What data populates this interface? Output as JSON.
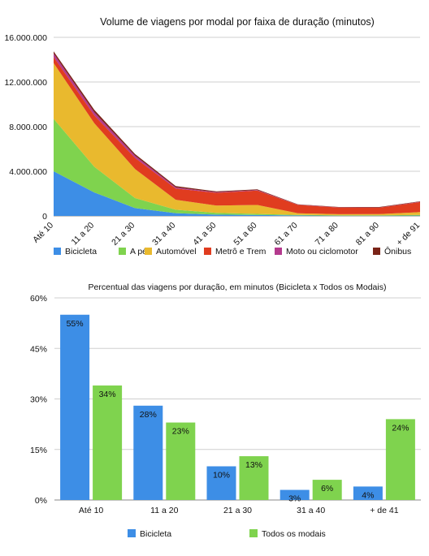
{
  "chart_data": [
    {
      "type": "area",
      "stacked": true,
      "title": "Volume de viagens por modal por faixa de duração (minutos)",
      "xlabel": "",
      "ylabel": "",
      "categories": [
        "Até 10",
        "11 a 20",
        "21 a 30",
        "31 a 40",
        "41 a 50",
        "51 a 60",
        "61 a 70",
        "71 a 80",
        "81 a 90",
        "+ de 91"
      ],
      "ylim": [
        0,
        16000000
      ],
      "yticks": [
        "0",
        "4.000.000",
        "8.000.000",
        "12.000.000",
        "16.000.000"
      ],
      "grid": true,
      "legend_position": "bottom",
      "series": [
        {
          "name": "Bicicleta",
          "color": "#3d8ee6",
          "values": [
            4000000,
            2100000,
            700000,
            250000,
            120000,
            80000,
            40000,
            25000,
            20000,
            30000
          ]
        },
        {
          "name": "A pé",
          "color": "#7fd34e",
          "values": [
            4700000,
            2300000,
            900000,
            300000,
            150000,
            100000,
            50000,
            30000,
            30000,
            60000
          ]
        },
        {
          "name": "Automóvel",
          "color": "#e9b92e",
          "values": [
            5000000,
            3900000,
            2600000,
            900000,
            650000,
            800000,
            150000,
            100000,
            110000,
            250000
          ]
        },
        {
          "name": "Metrô e Trem",
          "color": "#e03c1f",
          "values": [
            550000,
            700000,
            1000000,
            1000000,
            1150000,
            1300000,
            750000,
            600000,
            580000,
            900000
          ]
        },
        {
          "name": "Moto ou ciclomotor",
          "color": "#b43a8e",
          "values": [
            300000,
            280000,
            200000,
            100000,
            50000,
            40000,
            20000,
            15000,
            20000,
            30000
          ]
        },
        {
          "name": "Ônibus",
          "color": "#7a2418",
          "values": [
            200000,
            220000,
            150000,
            120000,
            80000,
            60000,
            30000,
            30000,
            40000,
            40000
          ]
        }
      ]
    },
    {
      "type": "bar",
      "title": "Percentual das viagens por duração, em minutos (Bicicleta x Todos os Modais)",
      "xlabel": "",
      "ylabel": "",
      "categories": [
        "Até 10",
        "11 a 20",
        "21 a 30",
        "31 a 40",
        "+ de 41"
      ],
      "ylim": [
        0,
        60
      ],
      "yticks": [
        "0%",
        "15%",
        "30%",
        "45%",
        "60%"
      ],
      "grid": true,
      "legend_position": "bottom",
      "series": [
        {
          "name": "Bicicleta",
          "color": "#3d8ee6",
          "values": [
            55,
            28,
            10,
            3,
            4
          ],
          "labels": [
            "55%",
            "28%",
            "10%",
            "3%",
            "4%"
          ]
        },
        {
          "name": "Todos os modais",
          "color": "#7fd34e",
          "values": [
            34,
            23,
            13,
            6,
            24
          ],
          "labels": [
            "34%",
            "23%",
            "13%",
            "6%",
            "24%"
          ]
        }
      ]
    }
  ]
}
